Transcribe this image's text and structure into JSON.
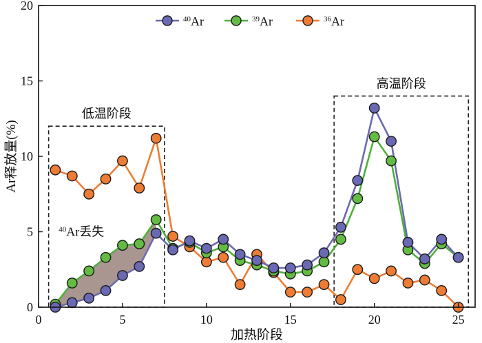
{
  "chart_data": {
    "type": "line",
    "xlabel": "加热阶段",
    "ylabel": "Ar释放量(%)",
    "xlim": [
      0,
      26
    ],
    "ylim": [
      0,
      20
    ],
    "xticks": [
      0,
      5,
      10,
      15,
      20,
      25
    ],
    "yticks": [
      0,
      5,
      10,
      15,
      20
    ],
    "grid": false,
    "legend": {
      "position": "top-center",
      "entries": [
        {
          "sup": "40",
          "label": "Ar"
        },
        {
          "sup": "39",
          "label": "Ar"
        },
        {
          "sup": "36",
          "label": "Ar"
        }
      ]
    },
    "series": [
      {
        "name": "40Ar",
        "color": "#6b69b0",
        "marker_color": "#6a69b4",
        "x": [
          1,
          2,
          3,
          4,
          5,
          6,
          7,
          8,
          9,
          10,
          11,
          12,
          13,
          14,
          15,
          16,
          17,
          18,
          19,
          20,
          21,
          22,
          23,
          24,
          25
        ],
        "y": [
          0.0,
          0.3,
          0.6,
          1.1,
          2.1,
          2.7,
          4.9,
          3.8,
          4.4,
          3.9,
          4.5,
          3.5,
          3.1,
          2.6,
          2.6,
          2.8,
          3.6,
          5.3,
          8.4,
          13.2,
          11.0,
          4.3,
          3.2,
          4.5,
          3.3
        ]
      },
      {
        "name": "39Ar",
        "color": "#4fb03b",
        "marker_color": "#63bb44",
        "x": [
          1,
          2,
          3,
          4,
          5,
          6,
          7,
          8,
          9,
          10,
          11,
          12,
          13,
          14,
          15,
          16,
          17,
          18,
          19,
          20,
          21,
          22,
          23,
          24,
          25
        ],
        "y": [
          0.2,
          1.6,
          2.4,
          3.3,
          4.1,
          4.2,
          5.8,
          3.9,
          4.3,
          3.6,
          4.0,
          3.1,
          2.8,
          2.4,
          2.2,
          2.4,
          3.0,
          4.5,
          7.2,
          11.3,
          9.7,
          3.8,
          2.9,
          4.2,
          3.3
        ]
      },
      {
        "name": "36Ar",
        "color": "#ee7d32",
        "marker_color": "#ee7c34",
        "x": [
          1,
          2,
          3,
          4,
          5,
          6,
          7,
          8,
          9,
          10,
          11,
          12,
          13,
          14,
          15,
          16,
          17,
          18,
          19,
          20,
          21,
          22,
          23,
          24,
          25
        ],
        "y": [
          9.1,
          8.7,
          7.5,
          8.5,
          9.7,
          7.9,
          11.2,
          4.7,
          4.0,
          3.0,
          3.3,
          1.5,
          3.5,
          2.3,
          1.0,
          1.0,
          1.5,
          0.5,
          2.5,
          1.9,
          2.4,
          1.6,
          1.8,
          1.1,
          0.0
        ]
      }
    ],
    "loss_fill": {
      "color": "#aa9691",
      "x_range": [
        1,
        7
      ],
      "label_sup": "40",
      "label": "Ar丢失",
      "label_at": [
        1.2,
        5.0
      ]
    },
    "regions": [
      {
        "label": "低温阶段",
        "x": [
          0.6,
          7.5
        ],
        "y": [
          0,
          12.0
        ]
      },
      {
        "label": "高温阶段",
        "x": [
          17.6,
          25.6
        ],
        "y": [
          0,
          14.0
        ]
      }
    ]
  }
}
